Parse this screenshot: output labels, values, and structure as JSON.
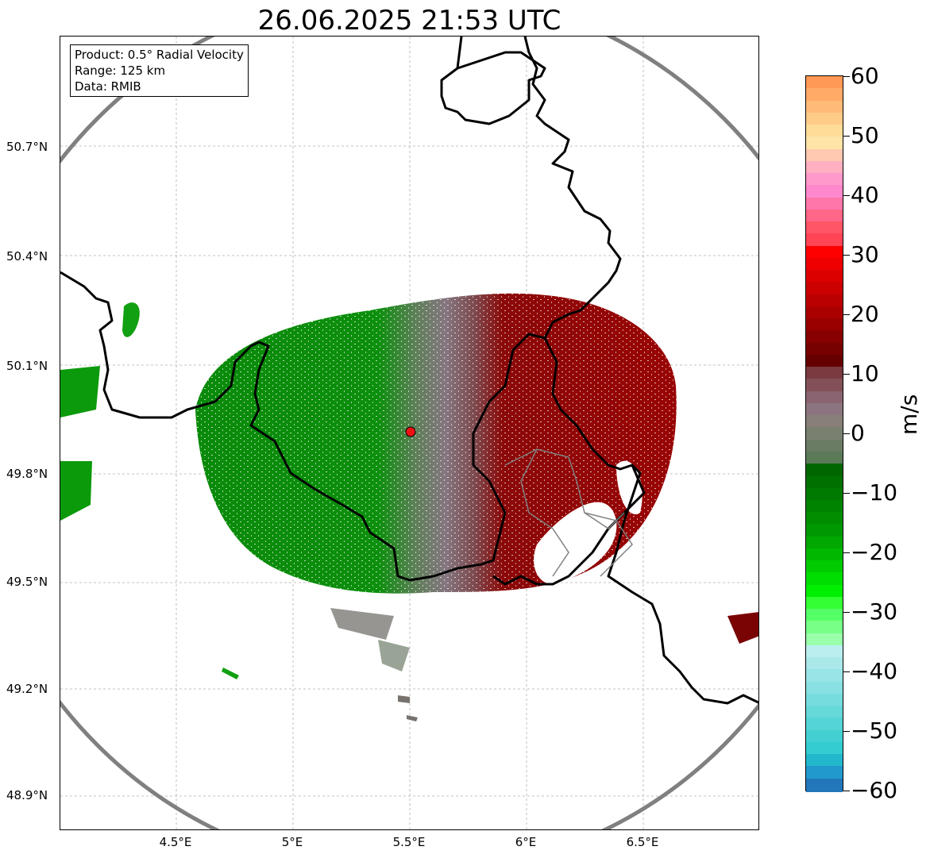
{
  "title": "26.06.2025 21:53 UTC",
  "info_box": {
    "product": "Product: 0.5° Radial Velocity",
    "range": "Range: 125 km",
    "data": "Data: RMIB"
  },
  "axes": {
    "lat_ticks": [
      "50.7°N",
      "50.4°N",
      "50.1°N",
      "49.8°N",
      "49.5°N",
      "49.2°N",
      "48.9°N"
    ],
    "lon_ticks": [
      "4.5°E",
      "5°E",
      "5.5°E",
      "6°E",
      "6.5°E"
    ]
  },
  "colorbar": {
    "unit": "m/s",
    "ticks": [
      "60",
      "50",
      "40",
      "30",
      "20",
      "10",
      "0",
      "−10",
      "−20",
      "−30",
      "−40",
      "−50",
      "−60"
    ],
    "range": [
      -60,
      60
    ]
  },
  "radar_site": {
    "lat": 49.91,
    "lon": 5.5
  },
  "colors": {
    "approaching": "#009900",
    "zero": "#7f8a78",
    "receding": "#990000",
    "range_ring": "#808080",
    "site_marker": "#ee1111"
  }
}
